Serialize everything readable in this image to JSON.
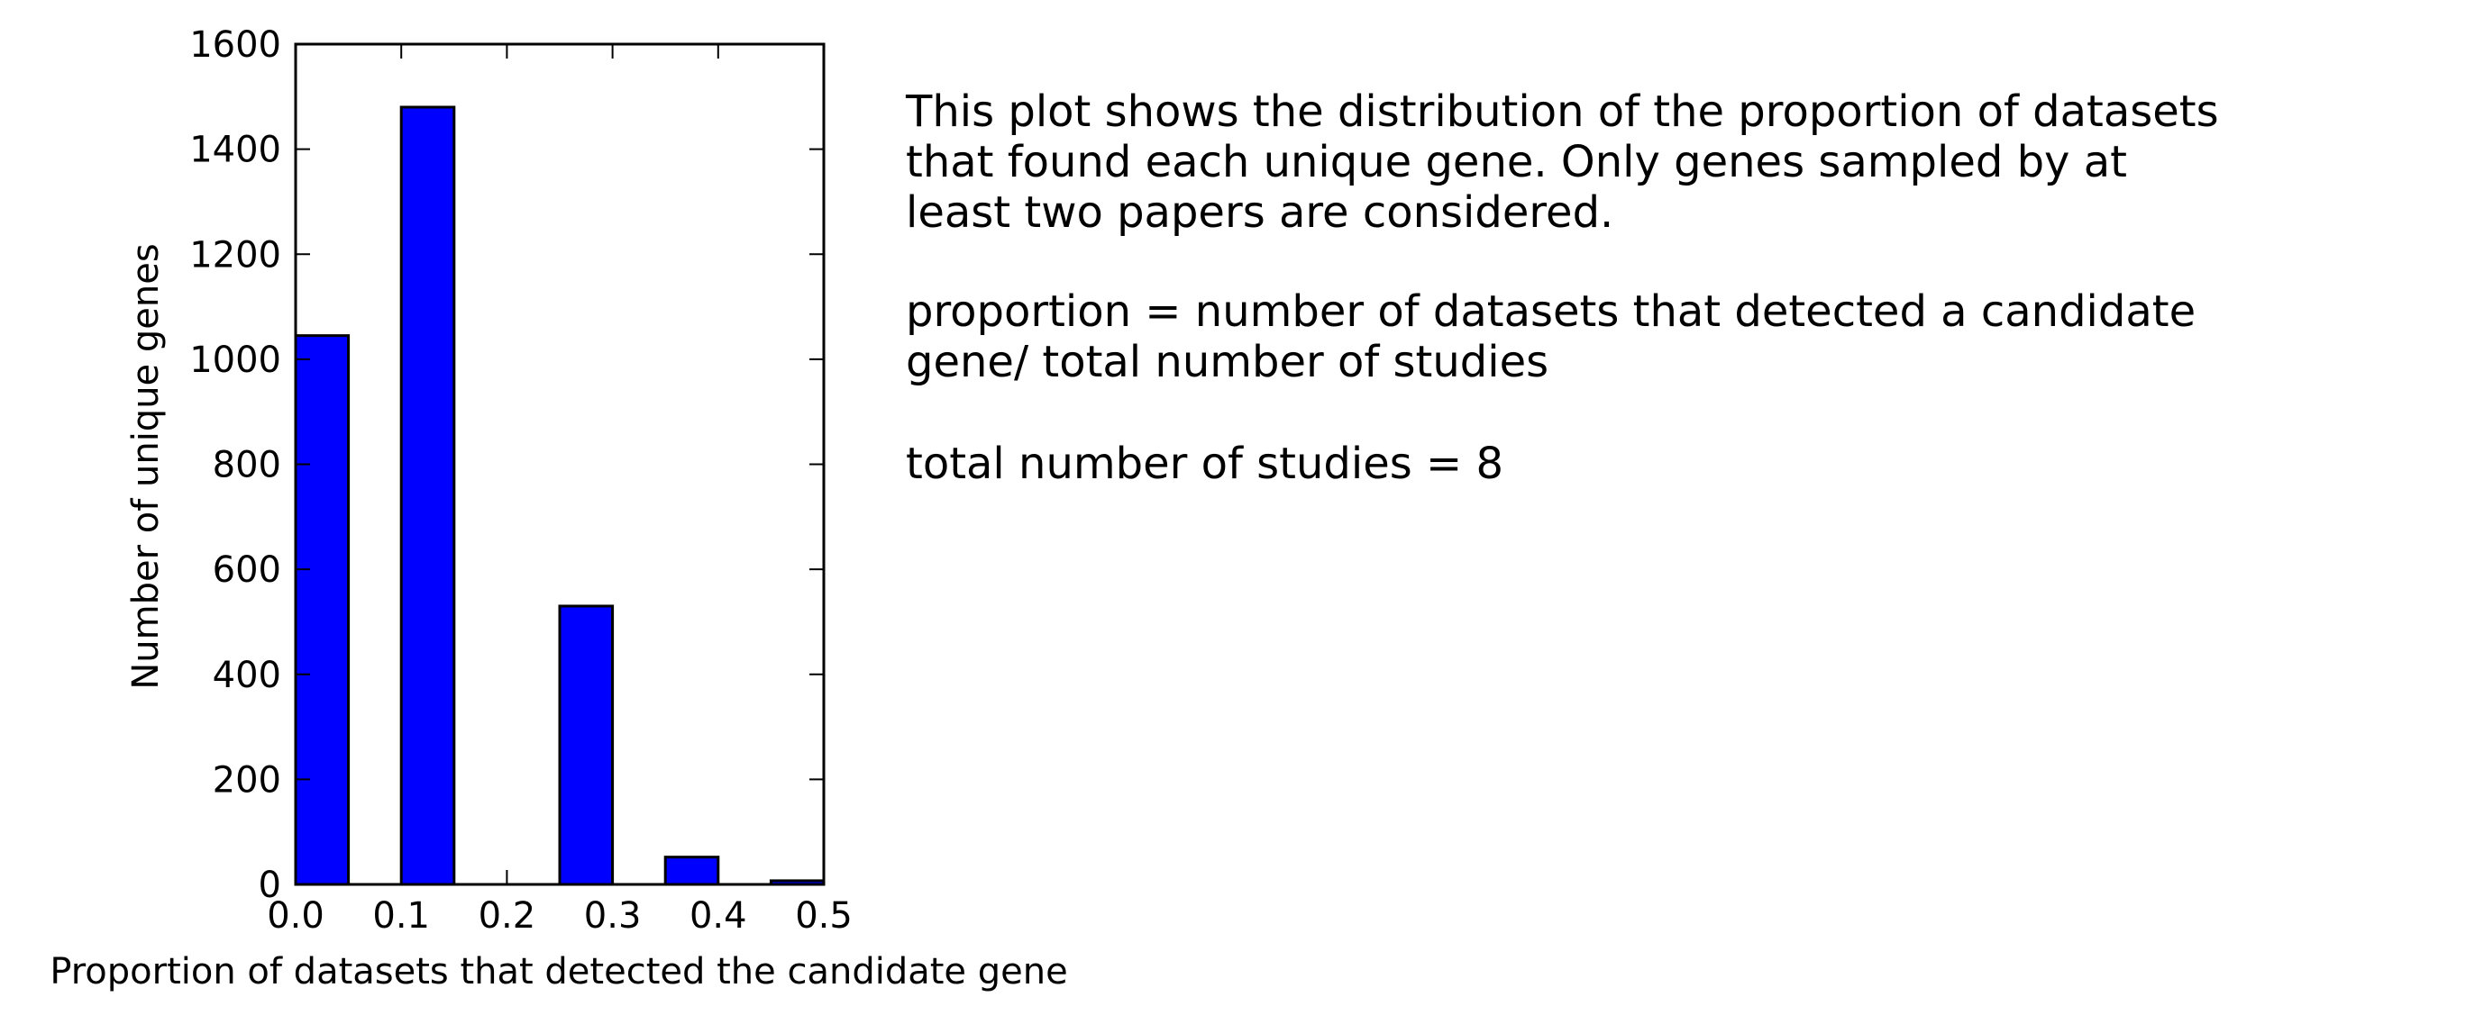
{
  "chart_data": {
    "type": "bar",
    "xlabel": "Proportion of datasets that detected the candidate gene",
    "ylabel": "Number of unique genes",
    "xlim": [
      0.0,
      0.5
    ],
    "ylim": [
      0,
      1600
    ],
    "xticks": [
      "0.0",
      "0.1",
      "0.2",
      "0.3",
      "0.4",
      "0.5"
    ],
    "yticks": [
      "0",
      "200",
      "400",
      "600",
      "800",
      "1000",
      "1200",
      "1400",
      "1600"
    ],
    "bars": [
      {
        "x_start": 0.0,
        "x_end": 0.05,
        "value": 1045
      },
      {
        "x_start": 0.1,
        "x_end": 0.15,
        "value": 1480
      },
      {
        "x_start": 0.25,
        "x_end": 0.3,
        "value": 530
      },
      {
        "x_start": 0.35,
        "x_end": 0.4,
        "value": 52
      },
      {
        "x_start": 0.45,
        "x_end": 0.5,
        "value": 7
      }
    ],
    "bar_color": "#0000ff",
    "grid": false
  },
  "annotation": {
    "paragraph1": "This plot shows the distribution of the proportion of datasets\nthat found each unique gene. Only genes sampled by at\nleast two papers are considered.",
    "paragraph2": "proportion = number of datasets that detected a candidate\ngene/ total number of studies",
    "paragraph3": "total number of studies = 8"
  }
}
